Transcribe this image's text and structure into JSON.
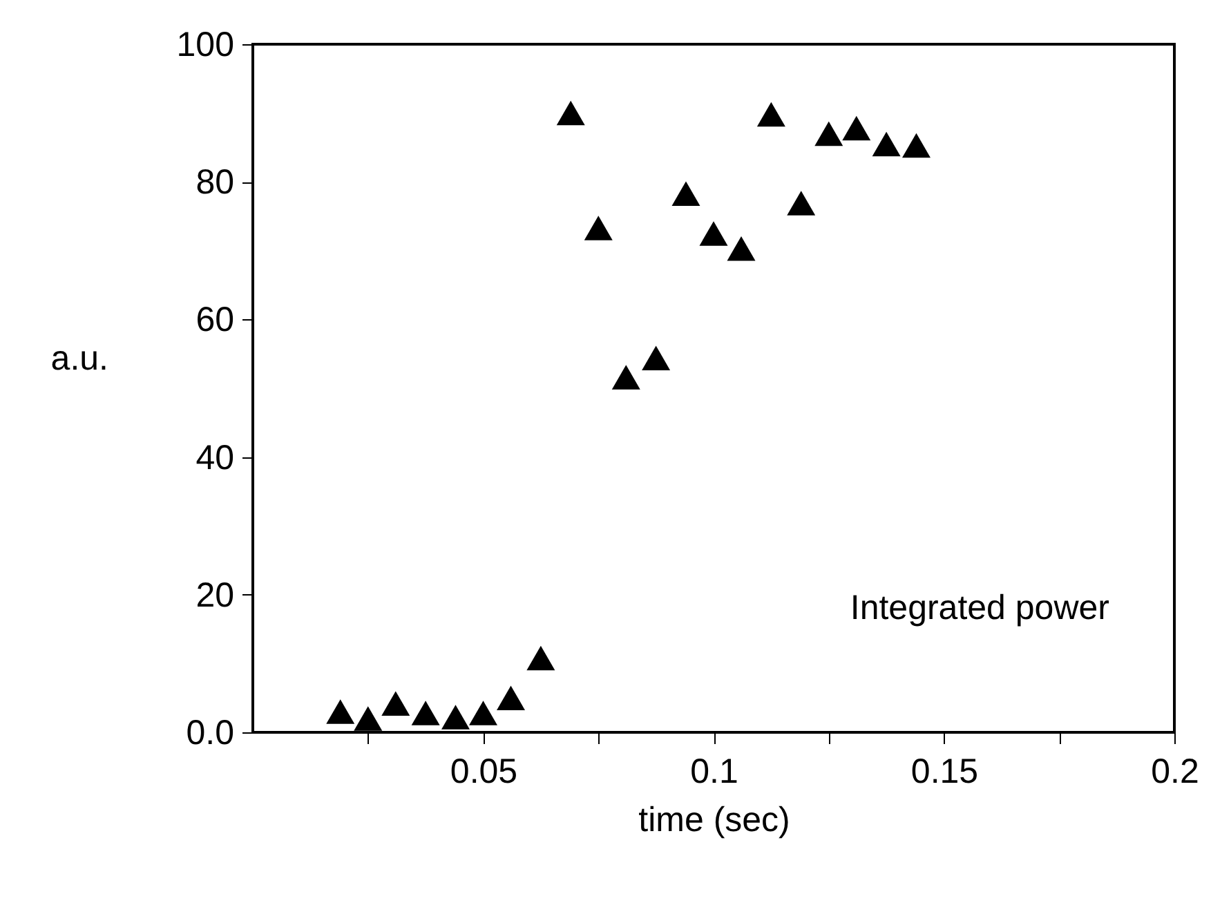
{
  "chart_data": {
    "type": "scatter",
    "xlabel": "time (sec)",
    "ylabel": "a.u.",
    "marker": "triangle",
    "grid": false,
    "annotations": [
      "Integrated power"
    ],
    "xlim": [
      0,
      0.2
    ],
    "ylim": [
      0,
      100
    ],
    "xticks": [
      {
        "value": 0.025,
        "label": null
      },
      0.05,
      {
        "value": 0.075,
        "label": null
      },
      0.1,
      {
        "value": 0.125,
        "label": null
      },
      0.15,
      {
        "value": 0.175,
        "label": null
      },
      0.2
    ],
    "yticks": [
      {
        "value": 0,
        "label": "0.0"
      },
      20,
      40,
      60,
      80,
      100
    ],
    "series": [
      {
        "color": "#000000",
        "x": [
          0.019,
          0.025,
          0.031,
          0.0375,
          0.044,
          0.05,
          0.056,
          0.0625,
          0.069,
          0.075,
          0.081,
          0.0875,
          0.094,
          0.1,
          0.106,
          0.1125,
          0.119,
          0.125,
          0.131,
          0.1375,
          0.144
        ],
        "values": [
          3.0,
          2.0,
          4.2,
          2.8,
          2.2,
          2.8,
          5.0,
          10.8,
          90,
          73.3,
          51.6,
          54.4,
          78.3,
          72.5,
          70.3,
          89.8,
          76.9,
          87.0,
          87.8,
          85.5,
          85.3
        ]
      }
    ]
  }
}
